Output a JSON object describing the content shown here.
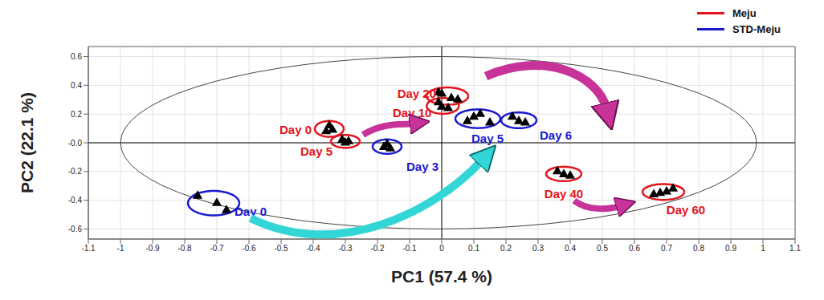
{
  "chart_data": {
    "type": "scatter",
    "xlabel": "PC1 (57.4 %)",
    "ylabel": "PC2 (22.1 %)",
    "xlim": [
      -1.1,
      1.1
    ],
    "xticks": [
      -1.1,
      -1,
      -0.9,
      -0.8,
      -0.7,
      -0.6,
      -0.5,
      -0.4,
      -0.3,
      -0.2,
      -0.1,
      0,
      0.1,
      0.2,
      0.3,
      0.4,
      0.5,
      0.6,
      0.7,
      0.8,
      0.9,
      1,
      1.1
    ],
    "ylim": [
      -0.67,
      0.67
    ],
    "yticks": [
      -0.6,
      -0.4,
      -0.2,
      {
        "value": 0,
        "label": "-0.0"
      },
      0.2,
      0.4,
      0.6
    ],
    "grid": true,
    "legend": "upper right",
    "marker": "triangle",
    "ellipse": {
      "center": [
        -0.01,
        0
      ],
      "rx": 0.99,
      "ry": 0.6
    },
    "series": [
      {
        "name": "Meju",
        "color": "#e3141c",
        "groups": [
          {
            "label": "Day 0",
            "x": [
              -0.36,
              -0.35,
              -0.34
            ],
            "y": [
              0.08,
              0.12,
              0.09
            ]
          },
          {
            "label": "Day 5",
            "x": [
              -0.31,
              -0.3,
              -0.29
            ],
            "y": [
              0.02,
              0.0,
              0.01
            ]
          },
          {
            "label": "Day 10",
            "x": [
              -0.01,
              0.0,
              0.02
            ],
            "y": [
              0.28,
              0.25,
              0.24
            ]
          },
          {
            "label": "Day 20",
            "x": [
              -0.01,
              0.0,
              0.03,
              0.05
            ],
            "y": [
              0.35,
              0.34,
              0.31,
              0.3
            ]
          },
          {
            "label": "Day 40",
            "x": [
              0.36,
              0.38,
              0.4
            ],
            "y": [
              -0.2,
              -0.22,
              -0.23
            ]
          },
          {
            "label": "Day 60",
            "x": [
              0.66,
              0.68,
              0.7,
              0.72
            ],
            "y": [
              -0.36,
              -0.35,
              -0.34,
              -0.32
            ]
          }
        ]
      },
      {
        "name": "STD-Meju",
        "color": "#1a1ad0",
        "groups": [
          {
            "label": "Day 0",
            "x": [
              -0.76,
              -0.7,
              -0.67
            ],
            "y": [
              -0.37,
              -0.42,
              -0.47
            ]
          },
          {
            "label": "Day 3",
            "x": [
              -0.18,
              -0.17,
              -0.16
            ],
            "y": [
              -0.03,
              -0.01,
              -0.04
            ]
          },
          {
            "label": "Day 5",
            "x": [
              0.08,
              0.1,
              0.12,
              0.15
            ],
            "y": [
              0.15,
              0.18,
              0.2,
              0.14
            ]
          },
          {
            "label": "Day 6",
            "x": [
              0.22,
              0.24,
              0.26
            ],
            "y": [
              0.18,
              0.15,
              0.14
            ]
          }
        ]
      }
    ]
  }
}
